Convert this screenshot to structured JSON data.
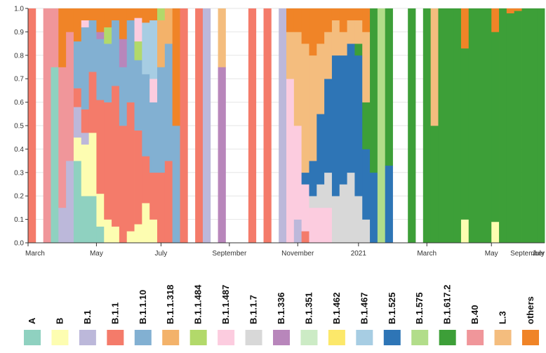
{
  "chart_data": {
    "type": "bar",
    "stacked": true,
    "normalized": true,
    "ylim": [
      0,
      1
    ],
    "y_ticks": [
      "0.0",
      "0.1",
      "0.2",
      "0.3",
      "0.4",
      "0.5",
      "0.6",
      "0.7",
      "0.8",
      "0.9",
      "1.0"
    ],
    "x_ticks": [
      {
        "label": "March",
        "week": 0
      },
      {
        "label": "May",
        "week": 9
      },
      {
        "label": "July",
        "week": 17.5
      },
      {
        "label": "September",
        "week": 26.5
      },
      {
        "label": "November",
        "week": 35.5
      },
      {
        "label": "2021",
        "week": 43.5
      },
      {
        "label": "March",
        "week": 52.5
      },
      {
        "label": "May",
        "week": 61
      },
      {
        "label": "July",
        "week": 70
      },
      {
        "label": "September",
        "week": 79
      }
    ],
    "grid": true,
    "legend_position": "bottom",
    "lineages": [
      {
        "name": "A",
        "color": "#8fd1c0"
      },
      {
        "name": "B",
        "color": "#fdfdb1"
      },
      {
        "name": "B.1",
        "color": "#bcb8da"
      },
      {
        "name": "B.1.1",
        "color": "#f47b6a"
      },
      {
        "name": "B.1.1.10",
        "color": "#82b0d2"
      },
      {
        "name": "B.1.1.318",
        "color": "#f3b26a"
      },
      {
        "name": "B.1.1.484",
        "color": "#b2d96a"
      },
      {
        "name": "B.1.1.487",
        "color": "#fcccdf"
      },
      {
        "name": "B.1.1.7",
        "color": "#d8d8d8"
      },
      {
        "name": "B.1.336",
        "color": "#b886bb"
      },
      {
        "name": "B.1.351",
        "color": "#ccebc5"
      },
      {
        "name": "B.1.462",
        "color": "#fce86a"
      },
      {
        "name": "B.1.467",
        "color": "#a7cde3"
      },
      {
        "name": "B.1.525",
        "color": "#2e75b6"
      },
      {
        "name": "B.1.575",
        "color": "#b2dd8a"
      },
      {
        "name": "B.1.617.2",
        "color": "#3d9f38"
      },
      {
        "name": "B.40",
        "color": "#f0969a"
      },
      {
        "name": "L.3",
        "color": "#f4bd7e"
      },
      {
        "name": "others",
        "color": "#f08427"
      }
    ],
    "weeks": [
      {
        "w": 0,
        "v": {
          "B.1.1": 1
        }
      },
      {
        "w": 2,
        "v": {
          "B.40": 1
        }
      },
      {
        "w": 3,
        "v": {
          "B.40": 0.25,
          "A": 0.75
        }
      },
      {
        "w": 4,
        "v": {
          "others": 0.25,
          "B.40": 0.6,
          "B.1": 0.15
        }
      },
      {
        "w": 5,
        "v": {
          "others": 0.1,
          "B.40": 0.55,
          "B.1": 0.35
        }
      },
      {
        "w": 6,
        "v": {
          "B": 0.1,
          "others": 0.14,
          "B.1.1": 0.08,
          "B.1": 0.13,
          "B.1.1.10": 0.2,
          "A": 0.35
        }
      },
      {
        "w": 7,
        "v": {
          "B": 0.22,
          "others": 0.05,
          "B.1.1": 0.1,
          "B.1": 0.05,
          "B.1.1.487": 0.03,
          "B.1.1.10": 0.35,
          "A": 0.2
        }
      },
      {
        "w": 8,
        "v": {
          "B": 0.27,
          "others": 0.05,
          "B.1.1": 0.26,
          "B.1.1.10": 0.22,
          "A": 0.2
        }
      },
      {
        "w": 9,
        "v": {
          "B": 0.14,
          "others": 0.1,
          "B.1.1": 0.4,
          "B.1.1.10": 0.26,
          "B.1.336": 0.03,
          "A": 0.07
        }
      },
      {
        "w": 10,
        "v": {
          "B": 0.1,
          "others": 0.08,
          "B.1.1": 0.5,
          "B.1.1.10": 0.25,
          "B.1.1.484": 0.07
        }
      },
      {
        "w": 11,
        "v": {
          "B": 0.07,
          "others": 0.05,
          "B.1.1": 0.6,
          "B.1.1.10": 0.28
        }
      },
      {
        "w": 12,
        "v": {
          "others": 0.13,
          "B.1.1": 0.5,
          "B.1.1.10": 0.25,
          "B.1.336": 0.12
        }
      },
      {
        "w": 13,
        "v": {
          "B": 0.05,
          "others": 0.05,
          "B.1.1": 0.55,
          "B.1.1.10": 0.35
        }
      },
      {
        "w": 14,
        "v": {
          "B": 0.08,
          "others": 0.04,
          "B.1.1": 0.4,
          "B.1.1.10": 0.3,
          "B.1.1.484": 0.08,
          "B.1.1.487": 0.1
        }
      },
      {
        "w": 15,
        "v": {
          "B": 0.17,
          "others": 0.06,
          "B.1.1": 0.2,
          "B.1.1.10": 0.35,
          "B.1.467": 0.22
        }
      },
      {
        "w": 16,
        "v": {
          "B": 0.1,
          "others": 0.05,
          "B.1.1": 0.2,
          "B.1.1.487": 0.1,
          "B.1.1.10": 0.3,
          "B.1.467": 0.25
        }
      },
      {
        "w": 17,
        "v": {
          "B.1.1.318": 0.2,
          "B.1.1": 0.3,
          "B.1.1.484": 0.05,
          "B.1.1.10": 0.45
        }
      },
      {
        "w": 18,
        "v": {
          "B.1.1.318": 0.15,
          "B.1.1": 0.35,
          "B.1.1.10": 0.5
        }
      },
      {
        "w": 19,
        "v": {
          "others": 0.5,
          "B.1.1.10": 0.5
        }
      },
      {
        "w": 20,
        "v": {
          "B.1.1": 1
        }
      },
      {
        "w": 22,
        "v": {
          "B.1.1": 1
        }
      },
      {
        "w": 23,
        "v": {
          "B.1": 1
        }
      },
      {
        "w": 25,
        "v": {
          "L.3": 0.25,
          "B.1.336": 0.75
        }
      },
      {
        "w": 29,
        "v": {
          "B.1.1": 1
        }
      },
      {
        "w": 31,
        "v": {
          "B.1.1": 1
        }
      },
      {
        "w": 33,
        "v": {
          "B.1": 1
        }
      },
      {
        "w": 34,
        "v": {
          "others": 0.1,
          "L.3": 0.2,
          "B.1.1.487": 0.7
        }
      },
      {
        "w": 35,
        "v": {
          "others": 0.1,
          "L.3": 0.4,
          "B.1.1.487": 0.4,
          "B.1": 0.1
        }
      },
      {
        "w": 36,
        "v": {
          "others": 0.15,
          "L.3": 0.55,
          "B.1.1.487": 0.2,
          "B.1.1": 0.05,
          "B.1.525": 0.05
        }
      },
      {
        "w": 37,
        "v": {
          "others": 0.2,
          "L.3": 0.45,
          "B.1.1.487": 0.15,
          "B.1.1.7": 0.05,
          "B.1.525": 0.15
        }
      },
      {
        "w": 38,
        "v": {
          "others": 0.15,
          "L.3": 0.3,
          "B.1.1.487": 0.15,
          "B.1.1.7": 0.1,
          "B.1.525": 0.3
        }
      },
      {
        "w": 39,
        "v": {
          "others": 0.1,
          "L.3": 0.2,
          "B.1.1.487": 0.15,
          "B.1.1.7": 0.15,
          "B.1.525": 0.4
        }
      },
      {
        "w": 40,
        "v": {
          "others": 0.05,
          "L.3": 0.15,
          "B.1.1.7": 0.2,
          "B.1.525": 0.6
        }
      },
      {
        "w": 41,
        "v": {
          "others": 0.1,
          "L.3": 0.1,
          "B.1.1.7": 0.25,
          "B.1.525": 0.55
        }
      },
      {
        "w": 42,
        "v": {
          "others": 0.05,
          "L.3": 0.1,
          "B.1.1.7": 0.3,
          "B.1.525": 0.55
        }
      },
      {
        "w": 43,
        "v": {
          "others": 0.05,
          "L.3": 0.1,
          "B.1.1.7": 0.2,
          "B.1.617.2": 0.05,
          "B.1.525": 0.6
        }
      },
      {
        "w": 44,
        "v": {
          "others": 0.1,
          "L.3": 0.3,
          "B.1.1.7": 0.1,
          "B.1.617.2": 0.2,
          "B.1.525": 0.3
        }
      },
      {
        "w": 45,
        "v": {
          "B.1.617.2": 0.7,
          "B.1.525": 0.3
        }
      },
      {
        "w": 46,
        "v": {
          "B.1.575": 1
        }
      },
      {
        "w": 47,
        "v": {
          "B.1.617.2": 0.67,
          "B.1.525": 0.33
        }
      },
      {
        "w": 50,
        "v": {
          "B.1.617.2": 1
        }
      },
      {
        "w": 52,
        "v": {
          "B.1.617.2": 1
        }
      },
      {
        "w": 53,
        "v": {
          "L.3": 0.5,
          "B.1.617.2": 0.5
        }
      },
      {
        "w": 54,
        "v": {
          "B.1.617.2": 1
        }
      },
      {
        "w": 55,
        "v": {
          "B.1.617.2": 1
        }
      },
      {
        "w": 56,
        "v": {
          "B.1.617.2": 1
        }
      },
      {
        "w": 57,
        "v": {
          "B": 0.1,
          "others": 0.17,
          "B.1.617.2": 0.73
        }
      },
      {
        "w": 58,
        "v": {
          "B.1.617.2": 1
        }
      },
      {
        "w": 59,
        "v": {
          "B.1.617.2": 1
        }
      },
      {
        "w": 60,
        "v": {
          "B.1.617.2": 1
        }
      },
      {
        "w": 61,
        "v": {
          "B": 0.09,
          "others": 0.1,
          "B.1.617.2": 0.81
        }
      },
      {
        "w": 62,
        "v": {
          "B.1.617.2": 1
        }
      },
      {
        "w": 63,
        "v": {
          "others": 0.02,
          "B.1.617.2": 0.98
        }
      },
      {
        "w": 64,
        "v": {
          "others": 0.01,
          "B.1.617.2": 0.99
        }
      },
      {
        "w": 65,
        "v": {
          "B.1.617.2": 1
        }
      },
      {
        "w": 66,
        "v": {
          "B.1.617.2": 1
        }
      },
      {
        "w": 67,
        "v": {
          "B.1.617.2": 1
        }
      }
    ]
  }
}
